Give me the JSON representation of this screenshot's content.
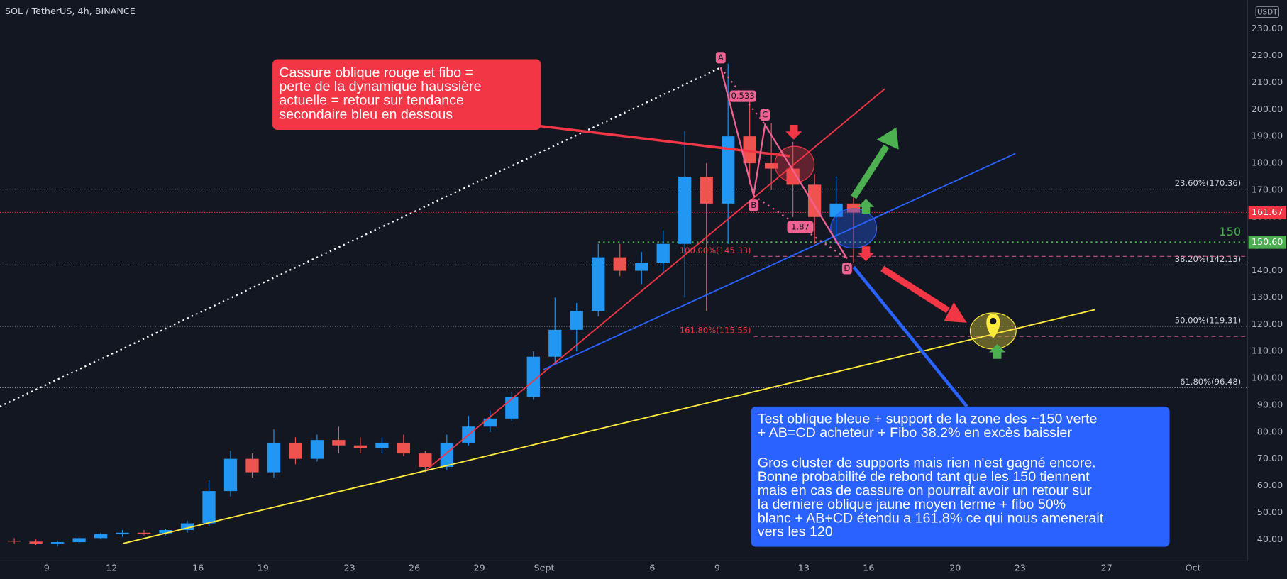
{
  "chart_data": {
    "type": "candlestick",
    "title": "SOL / TetherUS, 4h, BINANCE",
    "currency": "USDT",
    "up_color": "#2196f3",
    "down_color": "#ef5350",
    "xlim": [
      6.84,
      64.52
    ],
    "ylim": [
      32.06,
      240.69
    ],
    "xticks": [
      9,
      12,
      16,
      19,
      23,
      26,
      29,
      {
        "value": 32,
        "label": "Sept"
      },
      {
        "value": 37,
        "label": "6"
      },
      {
        "value": 40,
        "label": "9"
      },
      {
        "value": 44,
        "label": "13"
      },
      {
        "value": 47,
        "label": "16"
      },
      {
        "value": 51,
        "label": "20"
      },
      {
        "value": 54,
        "label": "23"
      },
      {
        "value": 58,
        "label": "27"
      },
      {
        "value": 62,
        "label": "Oct"
      }
    ],
    "yticks": [
      {
        "value": 40,
        "label": "40.00"
      },
      {
        "value": 50,
        "label": "50.00"
      },
      {
        "value": 60,
        "label": "60.00"
      },
      {
        "value": 70,
        "label": "70.00"
      },
      {
        "value": 80,
        "label": "80.00"
      },
      {
        "value": 90,
        "label": "90.00"
      },
      {
        "value": 100,
        "label": "100.00"
      },
      {
        "value": 110,
        "label": "110.00"
      },
      {
        "value": 120,
        "label": "120.00"
      },
      {
        "value": 130,
        "label": "130.00"
      },
      {
        "value": 140,
        "label": "140.00"
      },
      {
        "value": 150,
        "label": "150.00"
      },
      {
        "value": 160,
        "label": "160.00"
      },
      {
        "value": 170,
        "label": "170.00"
      },
      {
        "value": 180,
        "label": "180.00"
      },
      {
        "value": 190,
        "label": "190.00"
      },
      {
        "value": 200,
        "label": "200.00"
      },
      {
        "value": 210,
        "label": "210.00"
      },
      {
        "value": 220,
        "label": "220.00"
      },
      {
        "value": 230,
        "label": "230.00"
      }
    ],
    "candles": [
      {
        "x": 7.5,
        "open": 39.5,
        "high": 40.5,
        "low": 38.5,
        "close": 39.2
      },
      {
        "x": 8.5,
        "open": 39.2,
        "high": 40,
        "low": 38,
        "close": 38.5
      },
      {
        "x": 9.5,
        "open": 38.5,
        "high": 39.5,
        "low": 37.5,
        "close": 39
      },
      {
        "x": 10.5,
        "open": 39,
        "high": 41,
        "low": 38.5,
        "close": 40.5
      },
      {
        "x": 11.5,
        "open": 40.5,
        "high": 42.5,
        "low": 40,
        "close": 42
      },
      {
        "x": 12.5,
        "open": 42,
        "high": 43.5,
        "low": 41,
        "close": 42.5
      },
      {
        "x": 13.5,
        "open": 42.5,
        "high": 43.5,
        "low": 41.5,
        "close": 42.3
      },
      {
        "x": 14.5,
        "open": 42.3,
        "high": 44,
        "low": 41.5,
        "close": 43.5
      },
      {
        "x": 15.5,
        "open": 43.5,
        "high": 47,
        "low": 42.5,
        "close": 46
      },
      {
        "x": 16.5,
        "open": 46,
        "high": 62,
        "low": 45,
        "close": 58
      },
      {
        "x": 17.5,
        "open": 58,
        "high": 73,
        "low": 56,
        "close": 70
      },
      {
        "x": 18.5,
        "open": 70,
        "high": 72,
        "low": 63,
        "close": 65
      },
      {
        "x": 19.5,
        "open": 65,
        "high": 81,
        "low": 63,
        "close": 76
      },
      {
        "x": 20.5,
        "open": 76,
        "high": 78,
        "low": 68,
        "close": 70
      },
      {
        "x": 21.5,
        "open": 70,
        "high": 79,
        "low": 69,
        "close": 77
      },
      {
        "x": 22.5,
        "open": 77,
        "high": 82,
        "low": 72,
        "close": 75
      },
      {
        "x": 23.5,
        "open": 75,
        "high": 78,
        "low": 72,
        "close": 74
      },
      {
        "x": 24.5,
        "open": 74,
        "high": 78,
        "low": 72,
        "close": 76
      },
      {
        "x": 25.5,
        "open": 76,
        "high": 79,
        "low": 71,
        "close": 72
      },
      {
        "x": 26.5,
        "open": 72,
        "high": 73,
        "low": 65,
        "close": 67
      },
      {
        "x": 27.5,
        "open": 67,
        "high": 79,
        "low": 66,
        "close": 76
      },
      {
        "x": 28.5,
        "open": 76,
        "high": 86,
        "low": 75,
        "close": 82
      },
      {
        "x": 29.5,
        "open": 82,
        "high": 88,
        "low": 80,
        "close": 85
      },
      {
        "x": 30.5,
        "open": 85,
        "high": 95,
        "low": 84,
        "close": 93
      },
      {
        "x": 31.5,
        "open": 93,
        "high": 110,
        "low": 92,
        "close": 108
      },
      {
        "x": 32.5,
        "open": 108,
        "high": 130,
        "low": 105,
        "close": 118
      },
      {
        "x": 33.5,
        "open": 118,
        "high": 128,
        "low": 110,
        "close": 125
      },
      {
        "x": 34.5,
        "open": 125,
        "high": 150,
        "low": 123,
        "close": 145
      },
      {
        "x": 35.5,
        "open": 145,
        "high": 150,
        "low": 138,
        "close": 140
      },
      {
        "x": 36.5,
        "open": 140,
        "high": 147,
        "low": 135,
        "close": 143
      },
      {
        "x": 37.5,
        "open": 143,
        "high": 155,
        "low": 139,
        "close": 150
      },
      {
        "x": 38.5,
        "open": 150,
        "high": 192,
        "low": 130,
        "close": 175
      },
      {
        "x": 39.5,
        "open": 175,
        "high": 180,
        "low": 125,
        "close": 165
      },
      {
        "x": 40.5,
        "open": 165,
        "high": 217,
        "low": 150,
        "close": 190
      },
      {
        "x": 41.5,
        "open": 190,
        "high": 205,
        "low": 172,
        "close": 180
      },
      {
        "x": 42.5,
        "open": 180,
        "high": 195,
        "low": 170,
        "close": 178
      },
      {
        "x": 43.5,
        "open": 178,
        "high": 188,
        "low": 160,
        "close": 172
      },
      {
        "x": 44.5,
        "open": 172,
        "high": 176,
        "low": 150,
        "close": 160
      },
      {
        "x": 45.5,
        "open": 160,
        "high": 175,
        "low": 150,
        "close": 165
      },
      {
        "x": 46.3,
        "open": 165,
        "high": 168,
        "low": 143,
        "close": 161.67
      }
    ],
    "price_lines": [
      {
        "value": 161.67,
        "label": "161.67",
        "color": "#f23645"
      },
      {
        "value": 150.6,
        "label": "150.60",
        "color": "#4caf50"
      }
    ],
    "zone_label": "150",
    "fib_levels": [
      {
        "value": 170.36,
        "label": "23.60%(170.36)"
      },
      {
        "value": 142.13,
        "label": "38.20%(142.13)"
      },
      {
        "value": 119.31,
        "label": "50.00%(119.31)"
      },
      {
        "value": 96.48,
        "label": "61.80%(96.48)"
      }
    ],
    "ext_levels": [
      {
        "value": 145.33,
        "label": "100.00%(145.33)"
      },
      {
        "value": 115.55,
        "label": "161.80%(115.55)"
      }
    ],
    "trendlines": [
      {
        "color": "#ffffff",
        "style": "dotted",
        "points": [
          [
            6.84,
            89.5
          ],
          [
            40.16,
            215.6
          ]
        ]
      },
      {
        "color": "#f23645",
        "style": "solid",
        "points": [
          [
            26.57,
            66
          ],
          [
            47.75,
            207.7
          ]
        ]
      },
      {
        "color": "#2962ff",
        "style": "solid",
        "points": [
          [
            31.96,
            103.2
          ],
          [
            53.78,
            183.6
          ]
        ]
      },
      {
        "color": "#ffeb3b",
        "style": "solid",
        "points": [
          [
            12.53,
            38.5
          ],
          [
            57.46,
            125.5
          ]
        ]
      }
    ],
    "pattern": {
      "color": "#f06292",
      "points": [
        {
          "label": "A",
          "x": 40.16,
          "y": 215.6
        },
        {
          "label": "B",
          "x": 41.68,
          "y": 168
        },
        {
          "label": "C",
          "x": 42.21,
          "y": 194.3
        },
        {
          "label": "D",
          "x": 46,
          "y": 144.5
        }
      ],
      "ratios": [
        0.533,
        1.87
      ]
    },
    "annotations": [
      {
        "color": "#f23645",
        "lines": [
          "Cassure oblique rouge et fibo =",
          "perte de la dynamique haussière",
          "actuelle = retour sur tendance",
          "secondaire bleu en dessous"
        ]
      },
      {
        "color": "#2962ff",
        "paragraphs": [
          [
            "Test oblique bleue + support de la zone des ~150 verte",
            "+ AB=CD acheteur + Fibo 38.2% en excès baissier"
          ],
          [
            "Gros cluster de supports mais rien n'est gagné encore.",
            "Bonne probabilité de rebond tant que les 150 tiennent",
            "mais en cas de cassure on pourrait avoir un retour sur",
            "la derniere oblique jaune moyen terme + fibo 50%",
            "blanc + AB+CD étendu a 161.8% ce qui nous amenerait",
            "vers les 120"
          ]
        ]
      }
    ]
  }
}
